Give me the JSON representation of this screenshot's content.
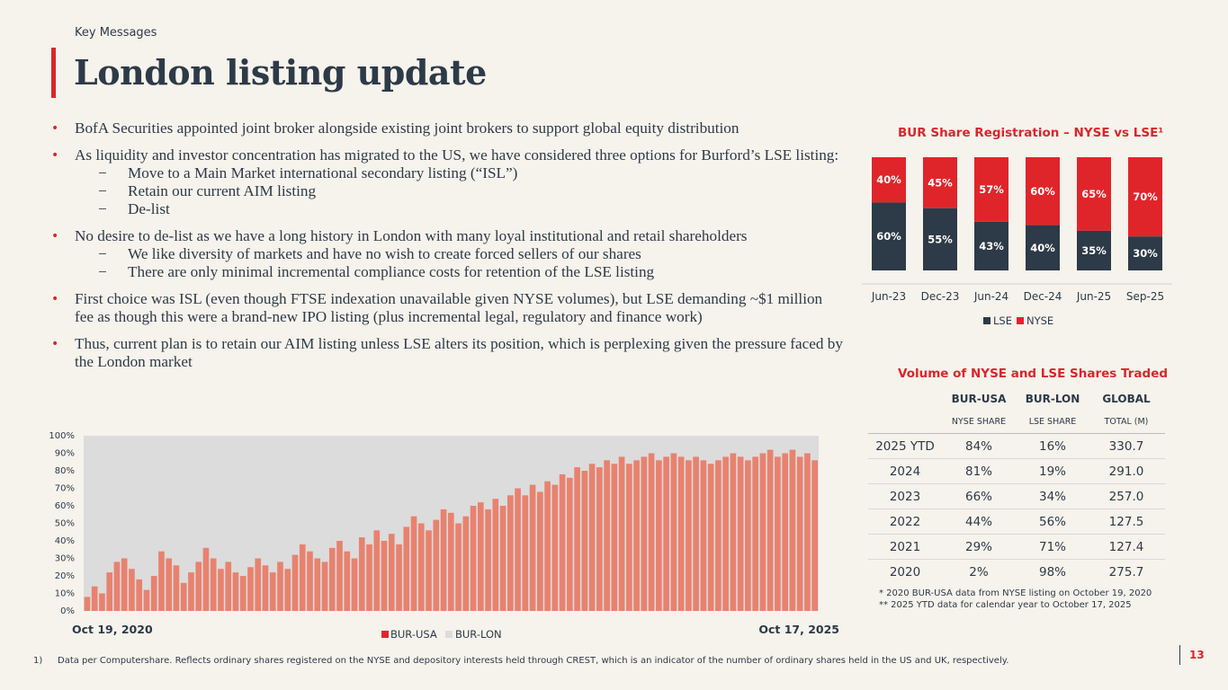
{
  "header": {
    "section": "Key Messages",
    "title": "London listing update"
  },
  "bullets": [
    {
      "text": "BofA Securities appointed joint broker alongside existing joint brokers to support global equity distribution",
      "subs": []
    },
    {
      "text": "As liquidity and investor concentration has migrated to the US, we have considered three options for Burford’s LSE listing:",
      "subs": [
        "Move to a Main Market international secondary listing (“ISL”)",
        "Retain our current AIM listing",
        "De-list"
      ]
    },
    {
      "text": "No desire to de-list as we have a long history in London with many loyal institutional and retail shareholders",
      "subs": [
        "We like diversity of markets and have no wish to create forced sellers of our shares",
        "There are only minimal incremental compliance costs for retention of the LSE listing"
      ]
    },
    {
      "text": "First choice was ISL (even though FTSE indexation unavailable given NYSE volumes), but LSE demanding ~$1 million fee as though this were a brand-new IPO listing (plus incremental legal, regulatory and finance work)",
      "subs": []
    },
    {
      "text": "Thus, current plan is to retain our AIM listing unless LSE alters its position, which is perplexing given the pressure faced by the London market",
      "subs": []
    }
  ],
  "colors": {
    "accent": "#d9262b",
    "navy": "#2d3a47",
    "lse": "#2d3a47",
    "nyse": "#e0252a",
    "bur_usa": "#e8826f",
    "bur_lon": "#dcdcdc"
  },
  "chart_data": [
    {
      "type": "bar",
      "stacked": true,
      "title": "BUR Share Registration – NYSE vs LSE¹",
      "categories": [
        "Jun-23",
        "Dec-23",
        "Jun-24",
        "Dec-24",
        "Jun-25",
        "Sep-25"
      ],
      "series": [
        {
          "name": "LSE",
          "values": [
            60,
            55,
            43,
            40,
            35,
            30
          ],
          "labels": [
            "60%",
            "55%",
            "43%",
            "40%",
            "35%",
            "30%"
          ]
        },
        {
          "name": "NYSE",
          "values": [
            40,
            45,
            57,
            60,
            65,
            70
          ],
          "labels": [
            "40%",
            "45%",
            "57%",
            "60%",
            "65%",
            "70%"
          ]
        }
      ],
      "ylim": [
        0,
        100
      ],
      "legend": "bottom"
    },
    {
      "type": "bar",
      "stacked": true,
      "title": "",
      "series": [
        {
          "name": "BUR-USA",
          "values": [
            8,
            14,
            10,
            22,
            28,
            30,
            24,
            18,
            12,
            20,
            34,
            30,
            26,
            16,
            22,
            28,
            36,
            30,
            24,
            28,
            22,
            20,
            25,
            30,
            26,
            22,
            28,
            24,
            32,
            38,
            34,
            30,
            28,
            36,
            40,
            34,
            30,
            42,
            38,
            46,
            40,
            44,
            38,
            48,
            54,
            50,
            46,
            52,
            58,
            56,
            50,
            54,
            60,
            62,
            58,
            64,
            60,
            66,
            70,
            66,
            72,
            68,
            74,
            72,
            78,
            76,
            82,
            80,
            84,
            82,
            86,
            84,
            88,
            84,
            86,
            88,
            90,
            86,
            88,
            90,
            88,
            86,
            88,
            86,
            84,
            86,
            88,
            90,
            88,
            86,
            88,
            90,
            92,
            88,
            90,
            92,
            88,
            90,
            86
          ]
        },
        {
          "name": "BUR-LON",
          "values": [
            92,
            86,
            90,
            78,
            72,
            70,
            76,
            82,
            88,
            80,
            66,
            70,
            74,
            84,
            78,
            72,
            64,
            70,
            76,
            72,
            78,
            80,
            75,
            70,
            74,
            78,
            72,
            76,
            68,
            62,
            66,
            70,
            72,
            64,
            60,
            66,
            70,
            58,
            62,
            54,
            60,
            56,
            62,
            52,
            46,
            50,
            54,
            48,
            42,
            44,
            50,
            46,
            40,
            38,
            42,
            36,
            40,
            34,
            30,
            34,
            28,
            32,
            26,
            28,
            22,
            24,
            18,
            20,
            16,
            18,
            14,
            16,
            12,
            16,
            14,
            12,
            10,
            14,
            12,
            10,
            12,
            14,
            12,
            14,
            16,
            14,
            12,
            10,
            12,
            14,
            12,
            10,
            8,
            12,
            10,
            8,
            12,
            10,
            14
          ]
        }
      ],
      "yticks": [
        "0%",
        "10%",
        "20%",
        "30%",
        "40%",
        "50%",
        "60%",
        "70%",
        "80%",
        "90%",
        "100%"
      ],
      "xlabel_start": "Oct 19, 2020",
      "xlabel_end": "Oct 17, 2025",
      "legend": "bottom"
    }
  ],
  "volume_table": {
    "title": "Volume of NYSE and LSE Shares Traded",
    "headers": [
      "",
      "BUR-USA",
      "BUR-LON",
      "GLOBAL"
    ],
    "subheaders": [
      "",
      "NYSE SHARE",
      "LSE SHARE",
      "TOTAL (M)"
    ],
    "rows": [
      [
        "2025 YTD",
        "84%",
        "16%",
        "330.7"
      ],
      [
        "2024",
        "81%",
        "19%",
        "291.0"
      ],
      [
        "2023",
        "66%",
        "34%",
        "257.0"
      ],
      [
        "2022",
        "44%",
        "56%",
        "127.5"
      ],
      [
        "2021",
        "29%",
        "71%",
        "127.4"
      ],
      [
        "2020",
        "2%",
        "98%",
        "275.7"
      ]
    ],
    "notes": [
      "* 2020 BUR-USA data from NYSE listing on October 19, 2020",
      "** 2025 YTD data for calendar year to October 17, 2025"
    ]
  },
  "footer": {
    "footnote_num": "1)",
    "footnote": "Data per Computershare. Reflects ordinary shares registered on the NYSE and depository interests held through CREST, which is an indicator of the number of ordinary shares held in the US and UK, respectively.",
    "page": "13"
  }
}
